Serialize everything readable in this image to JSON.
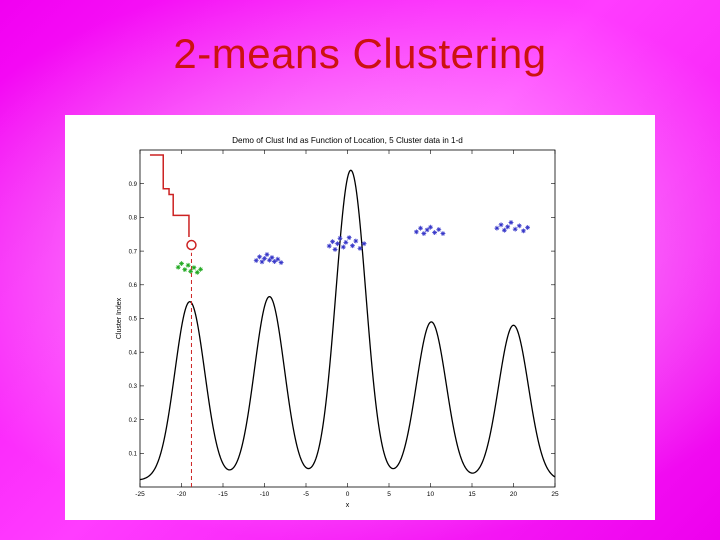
{
  "slide": {
    "title": "2-means Clustering"
  },
  "colors": {
    "background_outer": "#ee00ee",
    "background_mid": "#ff3cff",
    "background_inner": "#ffb2ff",
    "title_text": "#cc1111",
    "panel": "#ffffff",
    "axis": "#000000"
  },
  "chart_data": {
    "type": "line",
    "title": "Demo of Clust Ind as Function of Location, 5 Cluster data in 1-d",
    "xlabel": "x",
    "ylabel": "Cluster Index",
    "xlim": [
      -25,
      25
    ],
    "ylim": [
      0,
      1
    ],
    "x_ticks": [
      -25,
      -20,
      -15,
      -10,
      -5,
      0,
      5,
      10,
      15,
      20,
      25
    ],
    "y_ticks": [
      "0.1",
      "0.2",
      "0.3",
      "0.4",
      "0.5",
      "0.6",
      "0.7",
      "0.8",
      "0.9"
    ],
    "grid": false,
    "legend": null,
    "density_curve": {
      "description": "Kernel density estimate of 5-cluster 1-d data",
      "color": "#000000",
      "baseline": 0.02,
      "components": [
        {
          "center": -19.0,
          "amplitude": 0.53,
          "sigma": 1.8
        },
        {
          "center": -9.4,
          "amplitude": 0.545,
          "sigma": 1.8
        },
        {
          "center": 0.4,
          "amplitude": 0.92,
          "sigma": 1.8
        },
        {
          "center": 10.1,
          "amplitude": 0.47,
          "sigma": 1.8
        },
        {
          "center": 20.0,
          "amplitude": 0.46,
          "sigma": 1.8
        }
      ]
    },
    "index_path": {
      "description": "2-means cluster index as the split location moves, ending at current split",
      "color": "#cc2222",
      "points": [
        [
          -23.8,
          0.985
        ],
        [
          -22.2,
          0.985
        ],
        [
          -22.2,
          0.885
        ],
        [
          -21.5,
          0.885
        ],
        [
          -21.5,
          0.868
        ],
        [
          -21.0,
          0.868
        ],
        [
          -21.0,
          0.806
        ],
        [
          -19.1,
          0.806
        ],
        [
          -19.1,
          0.742
        ]
      ],
      "marker": {
        "x": -18.8,
        "y": 0.718,
        "shape": "circle"
      }
    },
    "split_line": {
      "x": -18.8,
      "y_from": 0.0,
      "y_to": 0.695,
      "style": "dashed",
      "color": "#cc2222"
    },
    "scatter_series": [
      {
        "name": "selected-cluster-points",
        "color": "#1fa81f",
        "marker": "asterisk",
        "points": [
          [
            -20.4,
            0.652
          ],
          [
            -20.0,
            0.663
          ],
          [
            -19.6,
            0.645
          ],
          [
            -19.2,
            0.658
          ],
          [
            -18.9,
            0.64
          ],
          [
            -18.5,
            0.651
          ],
          [
            -18.1,
            0.637
          ],
          [
            -17.7,
            0.646
          ]
        ]
      },
      {
        "name": "cluster-2-points",
        "color": "#3535c8",
        "marker": "asterisk",
        "points": [
          [
            -11.0,
            0.672
          ],
          [
            -10.6,
            0.683
          ],
          [
            -10.3,
            0.668
          ],
          [
            -10.0,
            0.678
          ],
          [
            -9.7,
            0.69
          ],
          [
            -9.4,
            0.673
          ],
          [
            -9.1,
            0.681
          ],
          [
            -8.8,
            0.669
          ],
          [
            -8.4,
            0.676
          ],
          [
            -8.0,
            0.666
          ]
        ]
      },
      {
        "name": "cluster-3-points",
        "color": "#3535c8",
        "marker": "asterisk",
        "points": [
          [
            -2.2,
            0.715
          ],
          [
            -1.8,
            0.728
          ],
          [
            -1.5,
            0.705
          ],
          [
            -1.2,
            0.722
          ],
          [
            -0.9,
            0.738
          ],
          [
            -0.5,
            0.712
          ],
          [
            -0.2,
            0.726
          ],
          [
            0.2,
            0.74
          ],
          [
            0.6,
            0.716
          ],
          [
            1.0,
            0.73
          ],
          [
            1.5,
            0.708
          ],
          [
            2.0,
            0.722
          ]
        ]
      },
      {
        "name": "cluster-4-points",
        "color": "#3535c8",
        "marker": "asterisk",
        "points": [
          [
            8.3,
            0.757
          ],
          [
            8.8,
            0.768
          ],
          [
            9.2,
            0.752
          ],
          [
            9.6,
            0.763
          ],
          [
            10.0,
            0.771
          ],
          [
            10.5,
            0.755
          ],
          [
            11.0,
            0.764
          ],
          [
            11.5,
            0.752
          ]
        ]
      },
      {
        "name": "cluster-5-points",
        "color": "#3535c8",
        "marker": "asterisk",
        "points": [
          [
            18.0,
            0.768
          ],
          [
            18.5,
            0.778
          ],
          [
            18.9,
            0.762
          ],
          [
            19.3,
            0.772
          ],
          [
            19.7,
            0.785
          ],
          [
            20.2,
            0.765
          ],
          [
            20.7,
            0.775
          ],
          [
            21.2,
            0.76
          ],
          [
            21.7,
            0.77
          ]
        ]
      }
    ]
  }
}
